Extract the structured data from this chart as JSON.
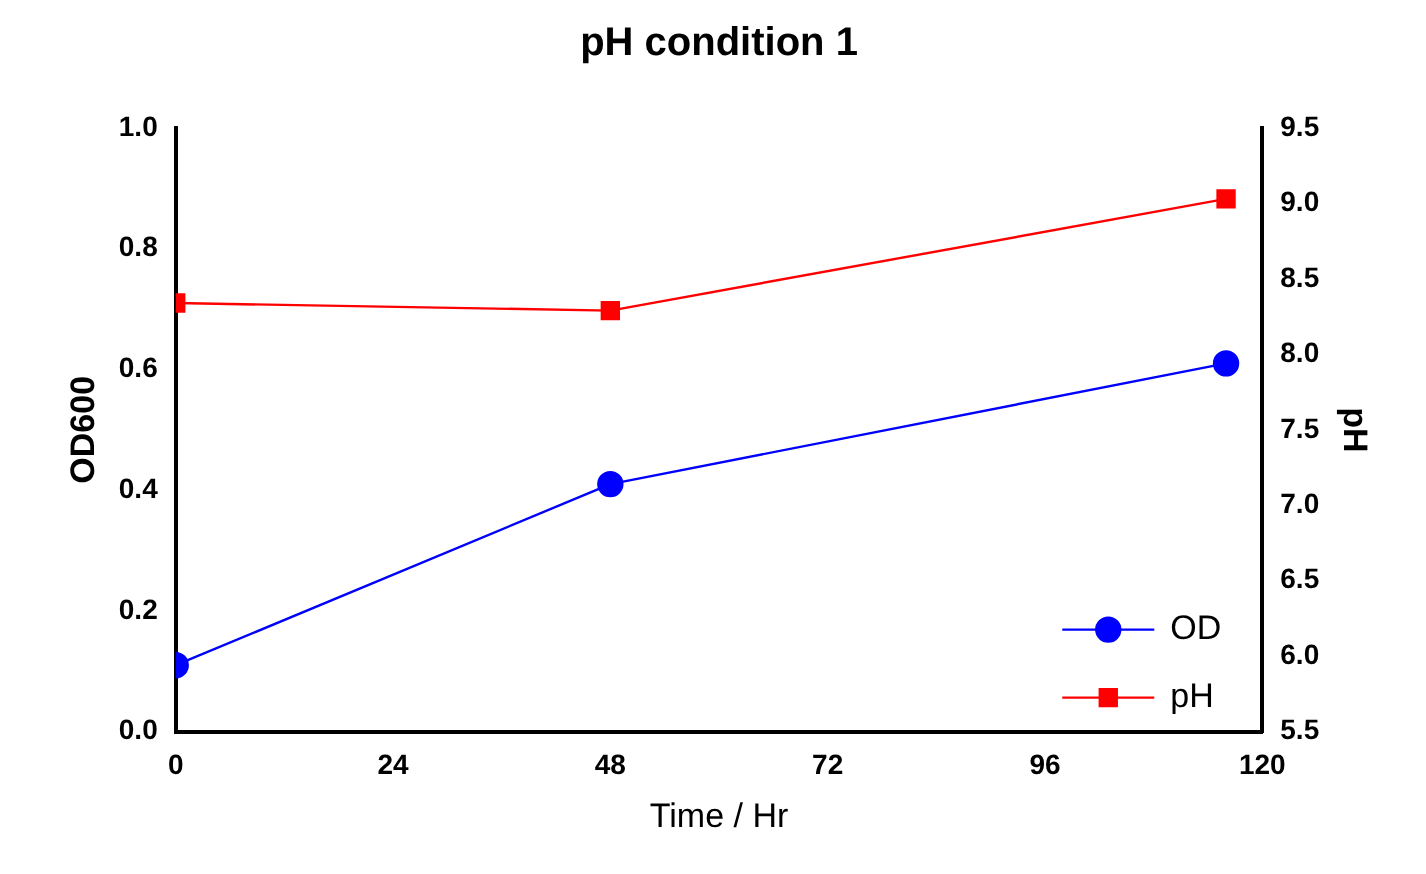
{
  "chart_data": {
    "type": "line",
    "title": "pH condition 1",
    "xlabel": "Time / Hr",
    "ylabel": "OD600",
    "y2label": "pH",
    "x": [
      0,
      48,
      116
    ],
    "series": [
      {
        "name": "OD",
        "color": "#0000ff",
        "values": [
          0.11,
          0.41,
          0.61
        ],
        "marker": "circle"
      },
      {
        "name": "pH",
        "color": "#ff0000",
        "values": [
          8.34,
          8.29,
          9.03
        ],
        "axis": "y2",
        "marker": "square"
      }
    ],
    "xlim": [
      0,
      120
    ],
    "xticks": [
      0,
      24,
      48,
      72,
      96,
      120
    ],
    "ylim": [
      0,
      1
    ],
    "yticks": [
      {
        "value": 0,
        "label": "0.0"
      },
      0.2,
      0.4,
      0.6,
      0.8,
      {
        "value": 1,
        "label": "1.0"
      }
    ],
    "y2lim": [
      5.5,
      9.5
    ],
    "y2ticks": [
      5.5,
      {
        "value": 6,
        "label": "6.0"
      },
      6.5,
      {
        "value": 7,
        "label": "7.0"
      },
      7.5,
      {
        "value": 8,
        "label": "8.0"
      },
      8.5,
      {
        "value": 9,
        "label": "9.0"
      },
      9.5
    ],
    "grid": false,
    "legend": "bottom right",
    "line_style": "solid"
  }
}
